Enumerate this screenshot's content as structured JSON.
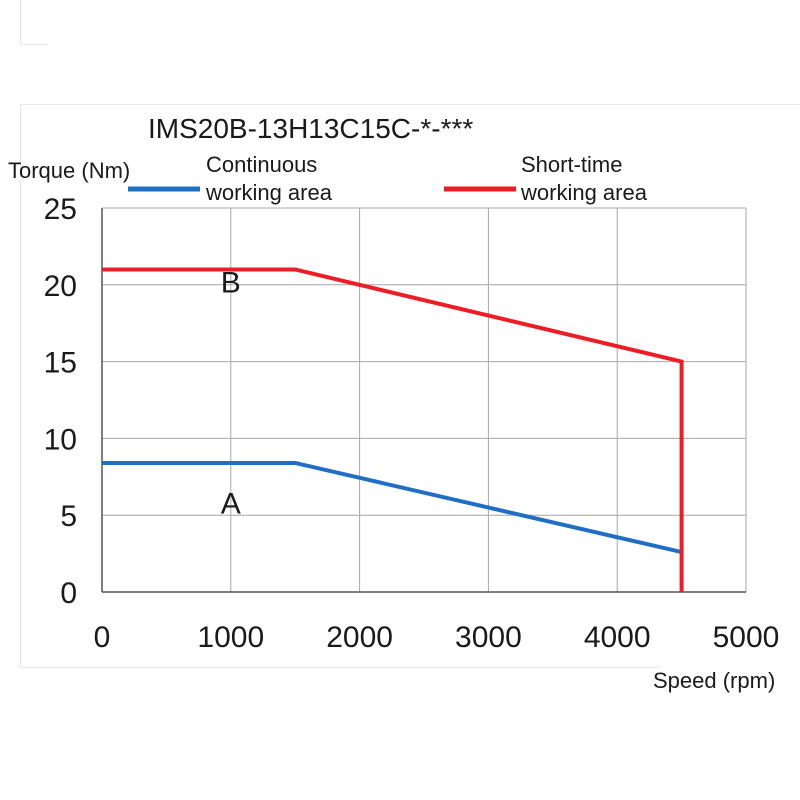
{
  "chart_data": {
    "type": "line",
    "title": "IMS20B-13H13C15C-*-***",
    "ylabel": "Torque (Nm)",
    "xlabel": "Speed (rpm)",
    "xlim": [
      0,
      5000
    ],
    "ylim": [
      0,
      25
    ],
    "x_ticks": [
      0,
      1000,
      2000,
      3000,
      4000,
      5000
    ],
    "y_ticks": [
      0,
      5,
      10,
      15,
      20,
      25
    ],
    "grid": true,
    "legend_position": "top",
    "series": [
      {
        "name": "Continuous working area",
        "legend_lines": [
          "Continuous",
          "working area"
        ],
        "color": "#1f6fc5",
        "x": [
          0,
          1500,
          4500
        ],
        "y": [
          8.4,
          8.4,
          2.6
        ]
      },
      {
        "name": "Short-time working area",
        "legend_lines": [
          "Short-time",
          "working area"
        ],
        "color": "#ee1c25",
        "x": [
          0,
          1500,
          4500,
          4500
        ],
        "y": [
          21,
          21,
          15,
          0
        ]
      }
    ],
    "annotations": [
      {
        "text": "B",
        "x": 1000,
        "y": 19.5
      },
      {
        "text": "A",
        "x": 1000,
        "y": 5.1
      }
    ]
  }
}
